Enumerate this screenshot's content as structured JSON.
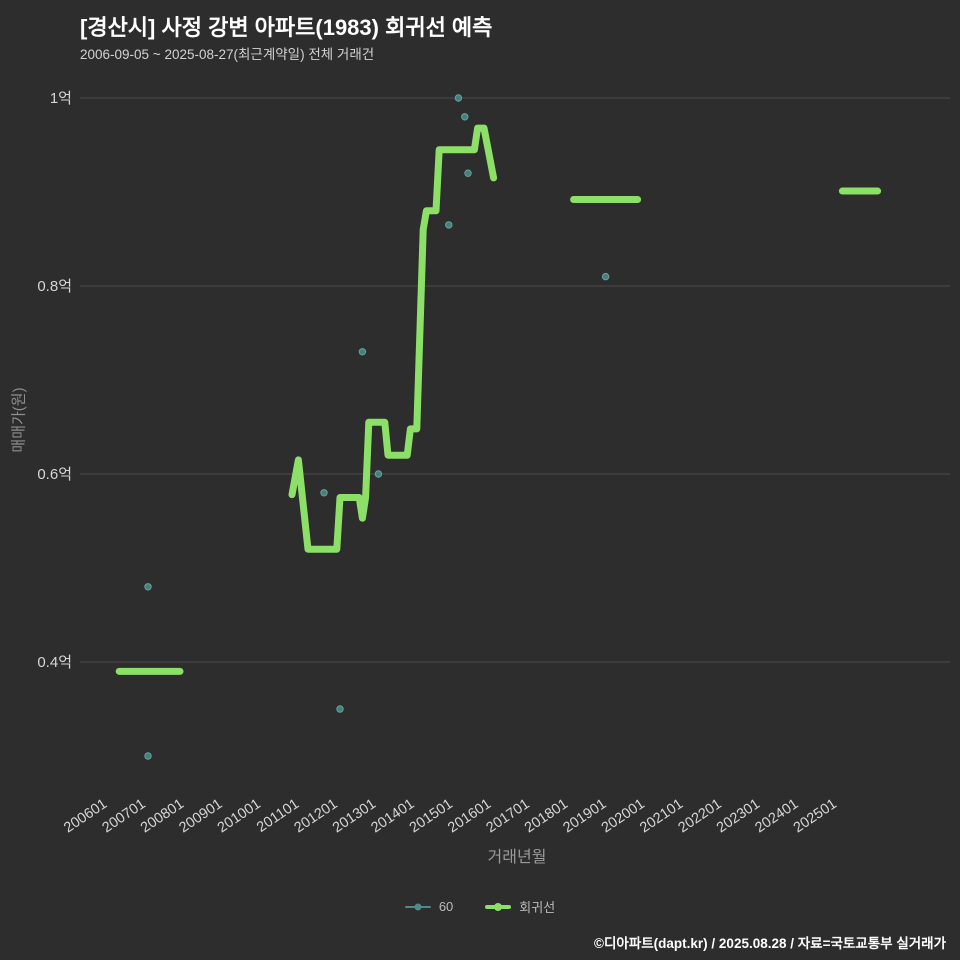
{
  "chart_data": {
    "type": "line",
    "title": "[경산시] 사정 강변 아파트(1983) 회귀선 예측",
    "subtitle": "2006-09-05 ~ 2025-08-27(최근계약일) 전체 거래건",
    "xlabel": "거래년월",
    "ylabel": "매매가(원)",
    "unit": "억",
    "ylim": [
      0.25,
      1.02
    ],
    "grid": true,
    "legend_position": "bottom-center",
    "y_ticks": [
      {
        "label": "1억",
        "value": 1.0
      },
      {
        "label": "0.8억",
        "value": 0.8
      },
      {
        "label": "0.6억",
        "value": 0.6
      },
      {
        "label": "0.4억",
        "value": 0.4
      }
    ],
    "x_ticks": [
      "200601",
      "200701",
      "200801",
      "200901",
      "201001",
      "201101",
      "201201",
      "201301",
      "201401",
      "201501",
      "201601",
      "201701",
      "201801",
      "201901",
      "202001",
      "202101",
      "202201",
      "202301",
      "202401",
      "202501"
    ],
    "legend": [
      {
        "label": "60",
        "color": "#4f8a88",
        "marker": "line-dot-thin"
      },
      {
        "label": "회귀선",
        "color": "#8ce068",
        "marker": "line-dot-thick"
      }
    ],
    "series": [
      {
        "name": "60",
        "type": "scatter",
        "color": "#44807e",
        "stroke": "#63a4a1",
        "points": [
          {
            "x": "200704",
            "y": 0.48
          },
          {
            "x": "200704",
            "y": 0.3
          },
          {
            "x": "201111",
            "y": 0.58
          },
          {
            "x": "201204",
            "y": 0.35
          },
          {
            "x": "201211",
            "y": 0.73
          },
          {
            "x": "201304",
            "y": 0.6
          },
          {
            "x": "201502",
            "y": 0.865
          },
          {
            "x": "201505",
            "y": 1.0
          },
          {
            "x": "201507",
            "y": 0.98
          },
          {
            "x": "201508",
            "y": 0.92
          },
          {
            "x": "201903",
            "y": 0.81
          }
        ]
      },
      {
        "name": "회귀선",
        "type": "line",
        "color": "#8ce068",
        "width": 7,
        "segments": [
          [
            {
              "x": "200607",
              "y": 0.39
            },
            {
              "x": "200802",
              "y": 0.39
            }
          ],
          [
            {
              "x": "201101",
              "y": 0.578
            },
            {
              "x": "201103",
              "y": 0.615
            },
            {
              "x": "201106",
              "y": 0.52
            },
            {
              "x": "201203",
              "y": 0.52
            },
            {
              "x": "201204",
              "y": 0.575
            },
            {
              "x": "201210",
              "y": 0.575
            },
            {
              "x": "201211",
              "y": 0.553
            },
            {
              "x": "201212",
              "y": 0.575
            },
            {
              "x": "201301",
              "y": 0.655
            },
            {
              "x": "201306",
              "y": 0.655
            },
            {
              "x": "201307",
              "y": 0.62
            },
            {
              "x": "201401",
              "y": 0.62
            },
            {
              "x": "201402",
              "y": 0.648
            },
            {
              "x": "201404",
              "y": 0.648
            },
            {
              "x": "201406",
              "y": 0.86
            },
            {
              "x": "201407",
              "y": 0.88
            },
            {
              "x": "201410",
              "y": 0.88
            },
            {
              "x": "201411",
              "y": 0.945
            },
            {
              "x": "201510",
              "y": 0.945
            },
            {
              "x": "201511",
              "y": 0.968
            },
            {
              "x": "201601",
              "y": 0.968
            },
            {
              "x": "201604",
              "y": 0.915
            }
          ],
          [
            {
              "x": "201805",
              "y": 0.892
            },
            {
              "x": "202001",
              "y": 0.892
            }
          ],
          [
            {
              "x": "202505",
              "y": 0.901
            },
            {
              "x": "202604",
              "y": 0.901
            }
          ]
        ]
      }
    ],
    "style": {
      "background": "#2d2d2d",
      "grid_color": "#4c4c4c",
      "tick_color": "#d6d6d6",
      "axis_title_color": "#8f8f8f",
      "title_color": "#ffffff",
      "subtitle_color": "#d2d2d2"
    }
  },
  "footer": {
    "credit": "©디아파트(dapt.kr) / 2025.08.28 / 자료=국토교통부 실거래가"
  }
}
